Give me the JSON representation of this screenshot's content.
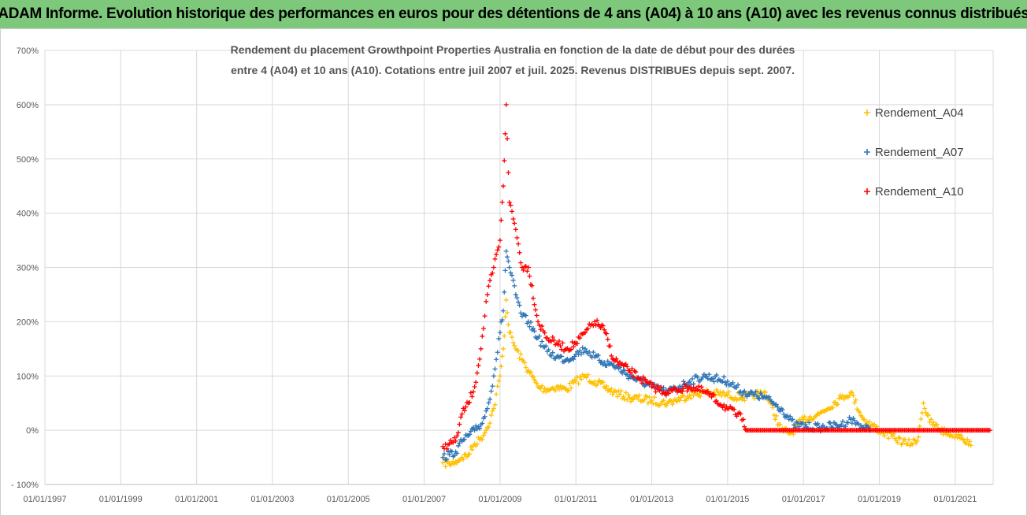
{
  "header": {
    "banner": "ADAM Informe. Evolution historique des performances en euros pour des détentions de 4 ans (A04) à 10 ans (A10) avec les revenus connus distribués"
  },
  "chart_data": {
    "type": "scatter",
    "title_lines": [
      "Rendement du placement Growthpoint Properties Australia en fonction de la date de début pour des durées",
      "entre 4 (A04) et 10 ans (A10). Cotations entre juil 2007 et juil. 2025. Revenus DISTRIBUES depuis sept. 2007."
    ],
    "xlabel": "",
    "ylabel": "",
    "x_ticks": [
      "01/01/1997",
      "01/01/1999",
      "01/01/2001",
      "01/01/2003",
      "01/01/2005",
      "01/01/2007",
      "01/01/2009",
      "01/01/2011",
      "01/01/2013",
      "01/01/2015",
      "01/01/2017",
      "01/01/2019",
      "01/01/2021"
    ],
    "y_ticks": [
      "700%",
      "600%",
      "500%",
      "400%",
      "300%",
      "200%",
      "100%",
      "0%",
      "- 100%"
    ],
    "xlim": [
      "1997-01-01",
      "2022-01-01"
    ],
    "ylim": [
      -100,
      700
    ],
    "y_unit": "%",
    "grid": true,
    "legend_position": "right",
    "series": [
      {
        "name": "Rendement_A04",
        "color": "#ffc000",
        "marker": "+",
        "points": [
          [
            "2007-07-01",
            -60
          ],
          [
            "2007-09-01",
            -62
          ],
          [
            "2007-11-01",
            -58
          ],
          [
            "2008-01-01",
            -50
          ],
          [
            "2008-03-01",
            -45
          ],
          [
            "2008-05-01",
            -25
          ],
          [
            "2008-07-01",
            -15
          ],
          [
            "2008-09-01",
            5
          ],
          [
            "2008-11-01",
            40
          ],
          [
            "2009-01-01",
            100
          ],
          [
            "2009-02-01",
            150
          ],
          [
            "2009-03-01",
            240
          ],
          [
            "2009-04-01",
            180
          ],
          [
            "2009-06-01",
            150
          ],
          [
            "2009-08-01",
            130
          ],
          [
            "2009-10-01",
            110
          ],
          [
            "2010-01-01",
            80
          ],
          [
            "2010-04-01",
            75
          ],
          [
            "2010-07-01",
            80
          ],
          [
            "2010-10-01",
            75
          ],
          [
            "2011-01-01",
            90
          ],
          [
            "2011-04-01",
            100
          ],
          [
            "2011-07-01",
            90
          ],
          [
            "2011-10-01",
            80
          ],
          [
            "2012-01-01",
            70
          ],
          [
            "2012-06-01",
            60
          ],
          [
            "2013-01-01",
            55
          ],
          [
            "2013-06-01",
            50
          ],
          [
            "2014-01-01",
            65
          ],
          [
            "2014-06-01",
            70
          ],
          [
            "2015-01-01",
            65
          ],
          [
            "2015-06-01",
            60
          ],
          [
            "2016-01-01",
            70
          ],
          [
            "2016-06-01",
            0
          ],
          [
            "2016-09-01",
            -5
          ],
          [
            "2017-01-01",
            20
          ],
          [
            "2017-06-01",
            30
          ],
          [
            "2018-01-01",
            60
          ],
          [
            "2018-04-01",
            70
          ],
          [
            "2018-08-01",
            20
          ],
          [
            "2019-01-01",
            0
          ],
          [
            "2019-06-01",
            -15
          ],
          [
            "2019-10-01",
            -25
          ],
          [
            "2020-01-01",
            -20
          ],
          [
            "2020-03-01",
            50
          ],
          [
            "2020-05-01",
            15
          ],
          [
            "2020-10-01",
            -5
          ],
          [
            "2021-03-01",
            -10
          ],
          [
            "2021-06-01",
            -28
          ]
        ]
      },
      {
        "name": "Rendement_A07",
        "color": "#2e75b6",
        "marker": "+",
        "points": [
          [
            "2007-07-01",
            -50
          ],
          [
            "2007-09-01",
            -45
          ],
          [
            "2007-11-01",
            -40
          ],
          [
            "2008-01-01",
            -20
          ],
          [
            "2008-03-01",
            -10
          ],
          [
            "2008-05-01",
            0
          ],
          [
            "2008-07-01",
            10
          ],
          [
            "2008-09-01",
            40
          ],
          [
            "2008-11-01",
            100
          ],
          [
            "2009-01-01",
            180
          ],
          [
            "2009-02-01",
            220
          ],
          [
            "2009-03-01",
            330
          ],
          [
            "2009-04-01",
            300
          ],
          [
            "2009-06-01",
            250
          ],
          [
            "2009-08-01",
            210
          ],
          [
            "2009-10-01",
            200
          ],
          [
            "2010-01-01",
            170
          ],
          [
            "2010-04-01",
            145
          ],
          [
            "2010-07-01",
            135
          ],
          [
            "2010-10-01",
            130
          ],
          [
            "2011-01-01",
            140
          ],
          [
            "2011-04-01",
            150
          ],
          [
            "2011-07-01",
            135
          ],
          [
            "2011-10-01",
            125
          ],
          [
            "2012-01-01",
            120
          ],
          [
            "2012-06-01",
            100
          ],
          [
            "2013-01-01",
            80
          ],
          [
            "2013-06-01",
            70
          ],
          [
            "2014-01-01",
            90
          ],
          [
            "2014-06-01",
            100
          ],
          [
            "2015-01-01",
            90
          ],
          [
            "2015-06-01",
            70
          ],
          [
            "2016-01-01",
            60
          ],
          [
            "2016-06-01",
            40
          ],
          [
            "2016-10-01",
            10
          ],
          [
            "2017-06-01",
            5
          ],
          [
            "2018-01-01",
            10
          ],
          [
            "2018-04-01",
            20
          ],
          [
            "2018-08-01",
            5
          ],
          [
            "2018-10-01",
            0
          ]
        ]
      },
      {
        "name": "Rendement_A10",
        "color": "#ff0000",
        "marker": "+",
        "points": [
          [
            "2007-07-01",
            -30
          ],
          [
            "2007-09-01",
            -25
          ],
          [
            "2007-11-01",
            -20
          ],
          [
            "2008-01-01",
            30
          ],
          [
            "2008-03-01",
            50
          ],
          [
            "2008-05-01",
            80
          ],
          [
            "2008-07-01",
            150
          ],
          [
            "2008-09-01",
            250
          ],
          [
            "2008-11-01",
            300
          ],
          [
            "2009-01-01",
            350
          ],
          [
            "2009-02-01",
            450
          ],
          [
            "2009-03-01",
            600
          ],
          [
            "2009-04-01",
            420
          ],
          [
            "2009-06-01",
            370
          ],
          [
            "2009-08-01",
            300
          ],
          [
            "2009-10-01",
            300
          ],
          [
            "2010-01-01",
            200
          ],
          [
            "2010-04-01",
            170
          ],
          [
            "2010-07-01",
            160
          ],
          [
            "2010-10-01",
            150
          ],
          [
            "2011-01-01",
            160
          ],
          [
            "2011-04-01",
            180
          ],
          [
            "2011-07-01",
            200
          ],
          [
            "2011-10-01",
            185
          ],
          [
            "2012-01-01",
            130
          ],
          [
            "2012-06-01",
            110
          ],
          [
            "2013-01-01",
            80
          ],
          [
            "2013-06-01",
            70
          ],
          [
            "2014-01-01",
            80
          ],
          [
            "2014-06-01",
            70
          ],
          [
            "2015-01-01",
            40
          ],
          [
            "2015-06-01",
            20
          ],
          [
            "2015-07-01",
            0
          ],
          [
            "2016-01-01",
            0
          ],
          [
            "2017-01-01",
            0
          ],
          [
            "2018-01-01",
            0
          ],
          [
            "2019-01-01",
            0
          ],
          [
            "2020-01-01",
            0
          ],
          [
            "2021-01-01",
            0
          ],
          [
            "2021-12-01",
            0
          ]
        ]
      }
    ]
  }
}
